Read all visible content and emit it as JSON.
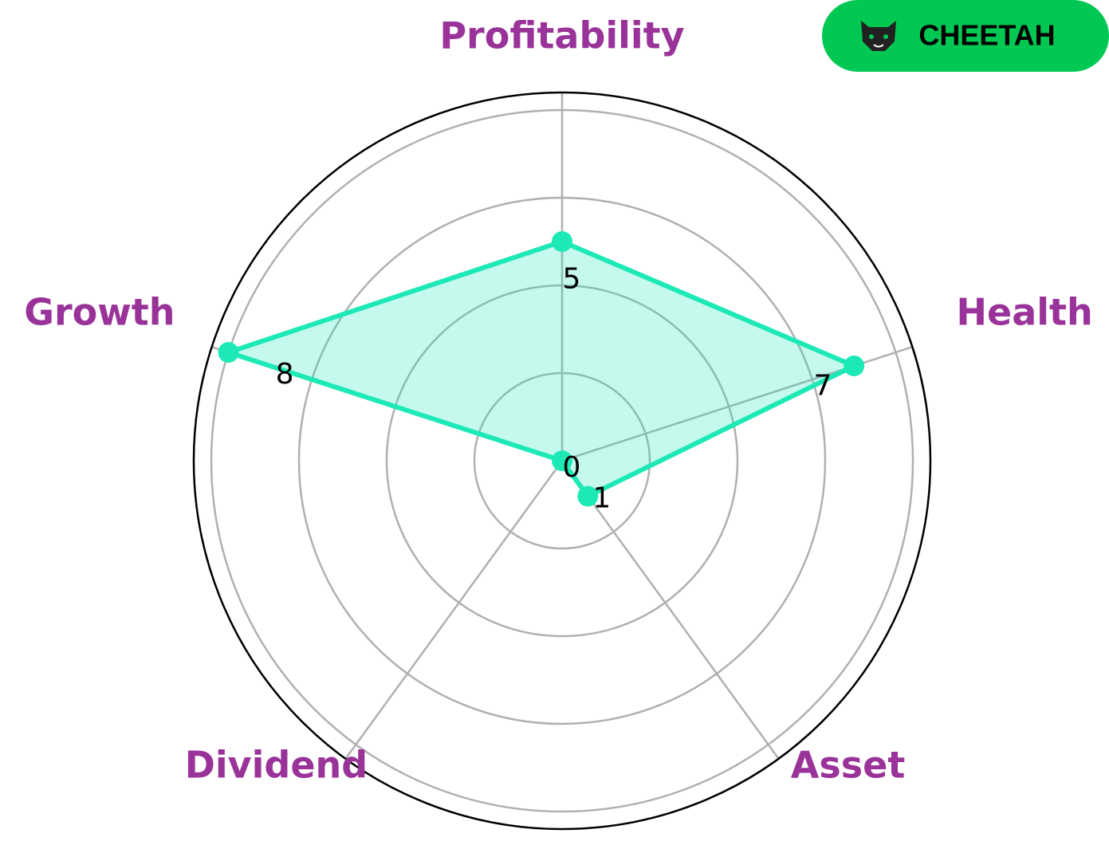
{
  "chart_data": {
    "type": "radar",
    "categories": [
      "Profitability",
      "Health",
      "Asset",
      "Dividend",
      "Growth"
    ],
    "values": [
      5,
      7,
      1,
      0,
      8
    ],
    "color": "#1de9b6",
    "rlim": [
      0,
      8.4
    ],
    "rticks": [
      2,
      4,
      6,
      8
    ],
    "grid": true
  },
  "logo": {
    "label": "CHEETAH",
    "color": "#00c853"
  }
}
